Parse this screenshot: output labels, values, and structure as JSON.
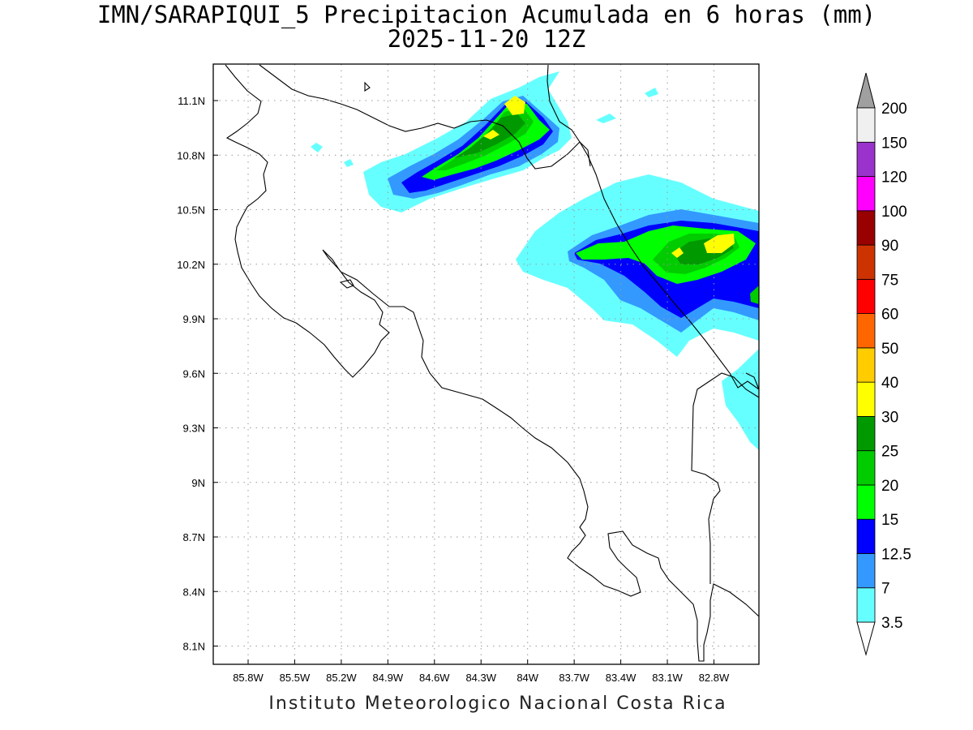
{
  "title": {
    "line1": "IMN/SARAPIQUI_5 Precipitacion Acumulada en 6 horas (mm)",
    "line2": "2025-11-20 12Z"
  },
  "credit": "Instituto Meteorologico Nacional Costa Rica",
  "map": {
    "lon_range": [
      -86.0,
      -83.0
    ],
    "lat_range": [
      8.0,
      11.2
    ],
    "lon_ticks": [
      "85.8W",
      "85.5W",
      "85.2W",
      "84.9W",
      "84.6W",
      "84.3W",
      "84W",
      "83.7W",
      "83.4W",
      "83.1W",
      "82.8W"
    ],
    "lat_ticks": [
      "11.1N",
      "10.8N",
      "10.5N",
      "10.2N",
      "9.9N",
      "9.6N",
      "9.3N",
      "9N",
      "8.7N",
      "8.4N",
      "8.1N"
    ],
    "grid": "dotted"
  },
  "colorbar": {
    "levels": [
      "3.5",
      "7",
      "12.5",
      "15",
      "20",
      "25",
      "30",
      "40",
      "50",
      "60",
      "75",
      "90",
      "100",
      "120",
      "150",
      "200"
    ],
    "colors": [
      "#66ffff",
      "#3399ff",
      "#0000ff",
      "#00ff00",
      "#00cc00",
      "#009900",
      "#ffff00",
      "#ffcc00",
      "#ff6600",
      "#ff0000",
      "#cc3300",
      "#990000",
      "#ff00ff",
      "#9933cc",
      "#f0f0f0"
    ],
    "top_arrow_color": "#a0a0a0",
    "bottom_arrow_color": "#ffffff"
  }
}
